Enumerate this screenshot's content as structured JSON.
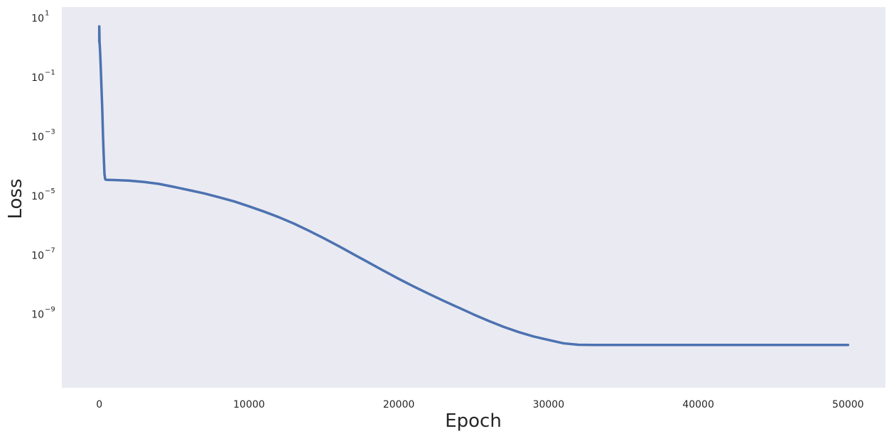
{
  "chart_data": {
    "type": "line",
    "title": "",
    "xlabel": "Epoch",
    "ylabel": "Loss",
    "yscale": "log",
    "xlim": [
      -2500,
      52500
    ],
    "ylim_log10": [
      -11.5,
      1.35
    ],
    "grid": false,
    "legend": "none",
    "background_color": "#EAEAF2",
    "line_color": "#4C72B0",
    "x_ticks": [
      {
        "value": 0,
        "label": "0"
      },
      {
        "value": 10000,
        "label": "10000"
      },
      {
        "value": 20000,
        "label": "20000"
      },
      {
        "value": 30000,
        "label": "30000"
      },
      {
        "value": 40000,
        "label": "40000"
      },
      {
        "value": 50000,
        "label": "50000"
      }
    ],
    "y_ticks": [
      {
        "exponent": 1,
        "base": "10",
        "exp_label": "1"
      },
      {
        "exponent": -1,
        "base": "10",
        "exp_label": "−1"
      },
      {
        "exponent": -3,
        "base": "10",
        "exp_label": "−3"
      },
      {
        "exponent": -5,
        "base": "10",
        "exp_label": "−5"
      },
      {
        "exponent": -7,
        "base": "10",
        "exp_label": "−7"
      },
      {
        "exponent": -9,
        "base": "10",
        "exp_label": "−9"
      }
    ],
    "series": [
      {
        "x": [
          0,
          0,
          20,
          50,
          100,
          150,
          200,
          250,
          300,
          350,
          400,
          500,
          1000,
          2000,
          3000,
          4000,
          5000,
          6000,
          7000,
          8000,
          9000,
          10000,
          11000,
          12000,
          13000,
          14000,
          15000,
          16000,
          17000,
          18000,
          19000,
          20000,
          21000,
          22000,
          23000,
          24000,
          25000,
          26000,
          27000,
          28000,
          29000,
          30000,
          31000,
          32000,
          33000,
          40000,
          45000,
          50000
        ],
        "y": [
          1.5,
          5,
          1.5,
          0.8,
          0.2,
          0.04,
          0.008,
          0.001,
          0.0002,
          5e-05,
          3.4e-05,
          3.3e-05,
          3.25e-05,
          3.1e-05,
          2.8e-05,
          2.4e-05,
          1.9e-05,
          1.48e-05,
          1.15e-05,
          8.5e-06,
          6.2e-06,
          4.2e-06,
          2.8e-06,
          1.8e-06,
          1.1e-06,
          6.3e-07,
          3.5e-07,
          1.9e-07,
          1e-07,
          5.3e-08,
          2.8e-08,
          1.5e-08,
          8.3e-09,
          4.7e-09,
          2.7e-09,
          1.6e-09,
          9.4e-10,
          5.7e-10,
          3.6e-10,
          2.4e-10,
          1.7e-10,
          1.3e-10,
          1e-10,
          8.9e-11,
          8.8e-11,
          8.8e-11,
          8.8e-11,
          8.8e-11
        ]
      }
    ]
  }
}
